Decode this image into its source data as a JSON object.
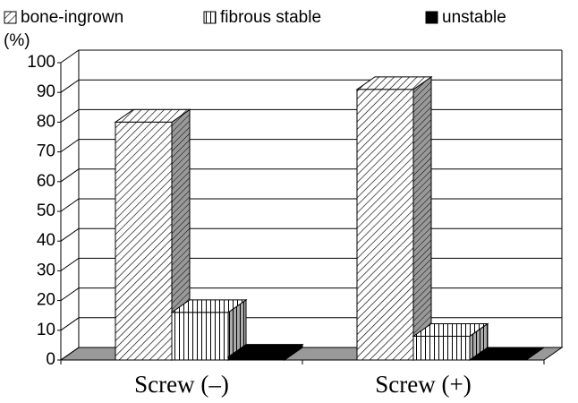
{
  "chart_data": {
    "type": "bar3d",
    "y_label": "(%)",
    "categories": [
      "Screw (–)",
      "Screw (+)"
    ],
    "series": [
      {
        "name": "bone-ingrown",
        "color": "#000000",
        "pattern": "diagonal",
        "values": [
          80,
          91
        ]
      },
      {
        "name": "fibrous stable",
        "color": "#000000",
        "pattern": "vertical",
        "values": [
          16,
          8
        ]
      },
      {
        "name": "unstable",
        "color": "#000000",
        "pattern": "solid",
        "values": [
          1,
          0
        ]
      }
    ],
    "ylim": [
      0,
      100
    ],
    "yticks": [
      0,
      10,
      20,
      30,
      40,
      50,
      60,
      70,
      80,
      90,
      100
    ],
    "grid": true,
    "legend": "top"
  }
}
